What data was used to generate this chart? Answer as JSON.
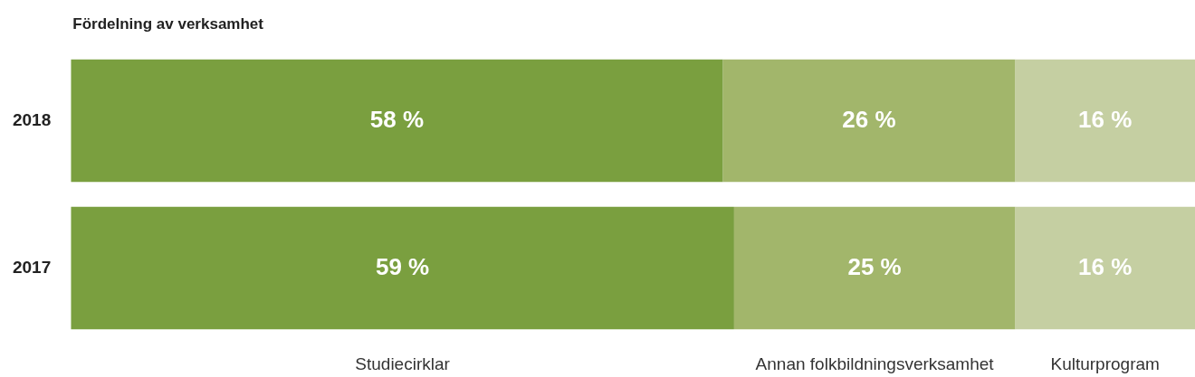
{
  "chart_data": {
    "type": "bar",
    "orientation": "horizontal",
    "stacked": true,
    "title": "Fördelning av verksamhet",
    "categories": [
      "2018",
      "2017"
    ],
    "xlim": [
      0,
      100
    ],
    "tick_labels": "y",
    "legend": false,
    "series": [
      {
        "name": "Studiecirklar",
        "color": "#7a9f3f",
        "values": [
          58,
          59
        ],
        "value_labels": [
          "58 %",
          "59 %"
        ]
      },
      {
        "name": "Annan folkbildningsverksamhet",
        "color": "#a2b66b",
        "values": [
          26,
          25
        ],
        "value_labels": [
          "26 %",
          "25 %"
        ]
      },
      {
        "name": "Kulturprogram",
        "color": "#c5cfa2",
        "values": [
          16,
          16
        ],
        "value_labels": [
          "16 %",
          "16 %"
        ]
      }
    ]
  }
}
